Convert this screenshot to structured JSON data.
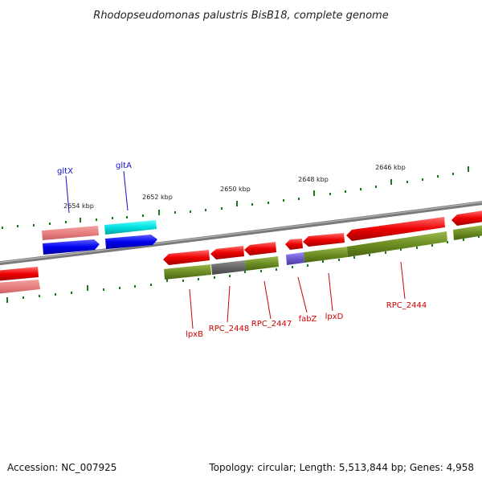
{
  "title": "Rhodopseudomonas palustris BisB18, complete genome",
  "footer": {
    "accession": "Accession: NC_007925",
    "summary": "Topology: circular; Length: 5,513,844 bp; Genes: 4,958"
  },
  "kbp_labels": [
    "2654 kbp",
    "2652 kbp",
    "2650 kbp",
    "2648 kbp",
    "2646 kbp"
  ],
  "gene_labels": {
    "gltX": "gltX",
    "gltA": "gltA",
    "lpxB": "lpxB",
    "RPC_2448": "RPC_2448",
    "RPC_2447": "RPC_2447",
    "fabZ": "fabZ",
    "lpxD": "lpxD",
    "RPC_2444": "RPC_2444"
  },
  "colors": {
    "forward_cds": "#0000ff",
    "reverse_cds": "#ff0000",
    "reverse_rna_light": "#f08080",
    "cyan_cds": "#00d8d8",
    "purple_cds": "#6a5acd",
    "green_gene": "#6b8e23",
    "gray_gene": "#606060",
    "backbone": "#808080",
    "ticks": "#1a7a1a"
  }
}
